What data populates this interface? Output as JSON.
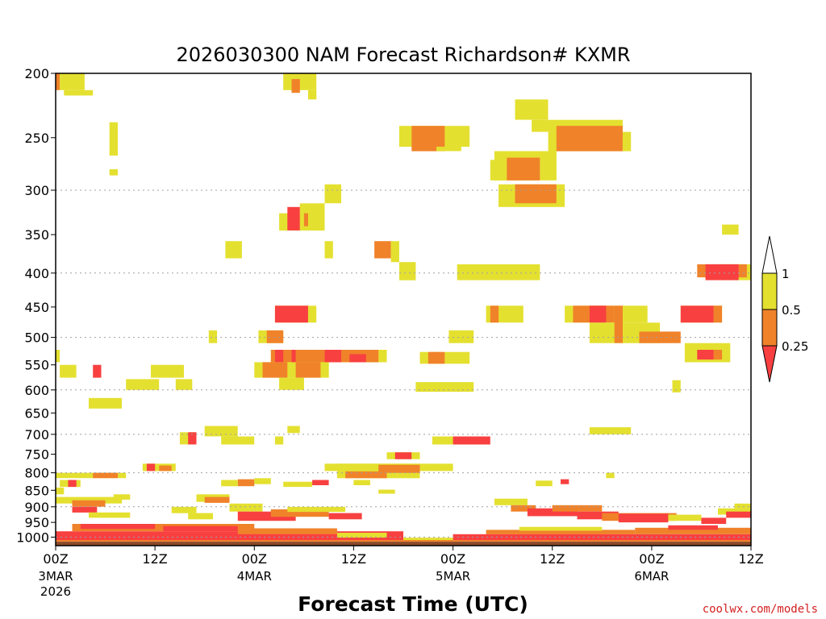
{
  "chart_data": {
    "type": "heatmap",
    "title": "2026030300 NAM Forecast Richardson# KXMR",
    "xlabel": "Forecast Time (UTC)",
    "ylabel": "",
    "credit": "coolwx.com/models",
    "y_scale": "log (pressure, hPa, inverted)",
    "ylim": [
      1030,
      200
    ],
    "xlim": [
      0,
      84
    ],
    "x_unit": "forecast hour",
    "y_ticks": [
      200,
      250,
      300,
      350,
      400,
      450,
      500,
      550,
      600,
      650,
      700,
      750,
      800,
      850,
      900,
      950,
      1000
    ],
    "y_gridlines": [
      300,
      400,
      500,
      600,
      700,
      800,
      900,
      1000
    ],
    "x_ticks": [
      {
        "hour": 0,
        "label": "00Z",
        "date": "3MAR",
        "year": "2026"
      },
      {
        "hour": 12,
        "label": "12Z",
        "date": "",
        "year": ""
      },
      {
        "hour": 24,
        "label": "00Z",
        "date": "4MAR",
        "year": ""
      },
      {
        "hour": 36,
        "label": "12Z",
        "date": "",
        "year": ""
      },
      {
        "hour": 48,
        "label": "00Z",
        "date": "5MAR",
        "year": ""
      },
      {
        "hour": 60,
        "label": "12Z",
        "date": "",
        "year": ""
      },
      {
        "hour": 72,
        "label": "00Z",
        "date": "6MAR",
        "year": ""
      },
      {
        "hour": 84,
        "label": "12Z",
        "date": "",
        "year": ""
      }
    ],
    "legend": {
      "placement": "right",
      "labels": [
        "1",
        "0.5",
        "0.25"
      ],
      "bins": [
        {
          "range": "0.5-1",
          "color": "#e4e030"
        },
        {
          "range": "0.25-0.5",
          "color": "#f0822a"
        },
        {
          "range": "<0.25",
          "color": "#f84040"
        }
      ]
    },
    "colors": {
      "yellow": "#e4e030",
      "orange": "#f0822a",
      "red": "#f84040",
      "ground": "#8b4a2b"
    },
    "cells": [
      {
        "t0": 0,
        "t1": 0.5,
        "p0": 200,
        "p1": 212,
        "c": "orange"
      },
      {
        "t0": 0.5,
        "t1": 3.5,
        "p0": 200,
        "p1": 212,
        "c": "yellow"
      },
      {
        "t0": 1,
        "t1": 4.5,
        "p0": 212,
        "p1": 216,
        "c": "yellow"
      },
      {
        "t0": 6.5,
        "t1": 7.5,
        "p0": 237,
        "p1": 266,
        "c": "yellow"
      },
      {
        "t0": 6.5,
        "t1": 7.5,
        "p0": 279,
        "p1": 285,
        "c": "yellow"
      },
      {
        "t0": 27.5,
        "t1": 31.5,
        "p0": 200,
        "p1": 212,
        "c": "yellow"
      },
      {
        "t0": 28.5,
        "t1": 29.5,
        "p0": 204,
        "p1": 214,
        "c": "orange"
      },
      {
        "t0": 30.5,
        "t1": 31.5,
        "p0": 212,
        "p1": 219,
        "c": "yellow"
      },
      {
        "t0": 41.5,
        "t1": 50,
        "p0": 240,
        "p1": 258,
        "c": "yellow"
      },
      {
        "t0": 43,
        "t1": 47,
        "p0": 240,
        "p1": 262,
        "c": "orange"
      },
      {
        "t0": 46,
        "t1": 49,
        "p0": 258,
        "p1": 262,
        "c": "yellow"
      },
      {
        "t0": 55.5,
        "t1": 59.5,
        "p0": 219,
        "p1": 235,
        "c": "yellow"
      },
      {
        "t0": 57.5,
        "t1": 68.5,
        "p0": 235,
        "p1": 245,
        "c": "yellow"
      },
      {
        "t0": 59.5,
        "t1": 69.5,
        "p0": 245,
        "p1": 262,
        "c": "yellow"
      },
      {
        "t0": 60.5,
        "t1": 68.5,
        "p0": 240,
        "p1": 262,
        "c": "orange"
      },
      {
        "t0": 53,
        "t1": 60.5,
        "p0": 262,
        "p1": 290,
        "c": "yellow"
      },
      {
        "t0": 52.5,
        "t1": 55,
        "p0": 270,
        "p1": 290,
        "c": "yellow"
      },
      {
        "t0": 54.5,
        "t1": 58.5,
        "p0": 268,
        "p1": 290,
        "c": "orange"
      },
      {
        "t0": 53.5,
        "t1": 61.5,
        "p0": 294,
        "p1": 318,
        "c": "yellow"
      },
      {
        "t0": 55.5,
        "t1": 60.5,
        "p0": 294,
        "p1": 314,
        "c": "orange"
      },
      {
        "t0": 32.5,
        "t1": 34.5,
        "p0": 294,
        "p1": 314,
        "c": "yellow"
      },
      {
        "t0": 29.5,
        "t1": 32.5,
        "p0": 314,
        "p1": 345,
        "c": "yellow"
      },
      {
        "t0": 27,
        "t1": 30.5,
        "p0": 325,
        "p1": 345,
        "c": "yellow"
      },
      {
        "t0": 28,
        "t1": 29.5,
        "p0": 318,
        "p1": 345,
        "c": "red"
      },
      {
        "t0": 30,
        "t1": 30.5,
        "p0": 325,
        "p1": 340,
        "c": "orange"
      },
      {
        "t0": 20.5,
        "t1": 22.5,
        "p0": 358,
        "p1": 380,
        "c": "yellow"
      },
      {
        "t0": 32.5,
        "t1": 33.5,
        "p0": 358,
        "p1": 380,
        "c": "yellow"
      },
      {
        "t0": 38.5,
        "t1": 40.5,
        "p0": 358,
        "p1": 380,
        "c": "orange"
      },
      {
        "t0": 40.5,
        "t1": 41.5,
        "p0": 358,
        "p1": 385,
        "c": "yellow"
      },
      {
        "t0": 41.5,
        "t1": 43.5,
        "p0": 385,
        "p1": 410,
        "c": "yellow"
      },
      {
        "t0": 48.5,
        "t1": 58.5,
        "p0": 388,
        "p1": 410,
        "c": "yellow"
      },
      {
        "t0": 80.5,
        "t1": 84,
        "p0": 388,
        "p1": 410,
        "c": "yellow"
      },
      {
        "t0": 77.5,
        "t1": 83.5,
        "p0": 388,
        "p1": 406,
        "c": "orange"
      },
      {
        "t0": 78.5,
        "t1": 82.5,
        "p0": 388,
        "p1": 410,
        "c": "red"
      },
      {
        "t0": 80.5,
        "t1": 82.5,
        "p0": 338,
        "p1": 350,
        "c": "yellow"
      },
      {
        "t0": 26.5,
        "t1": 31.5,
        "p0": 448,
        "p1": 475,
        "c": "yellow"
      },
      {
        "t0": 26.5,
        "t1": 30.5,
        "p0": 448,
        "p1": 475,
        "c": "red"
      },
      {
        "t0": 52,
        "t1": 56.5,
        "p0": 448,
        "p1": 475,
        "c": "yellow"
      },
      {
        "t0": 52.5,
        "t1": 53.5,
        "p0": 448,
        "p1": 475,
        "c": "orange"
      },
      {
        "t0": 61.5,
        "t1": 71.5,
        "p0": 448,
        "p1": 475,
        "c": "yellow"
      },
      {
        "t0": 62.5,
        "t1": 67.5,
        "p0": 448,
        "p1": 475,
        "c": "orange"
      },
      {
        "t0": 64.5,
        "t1": 66.5,
        "p0": 448,
        "p1": 475,
        "c": "red"
      },
      {
        "t0": 64.5,
        "t1": 73,
        "p0": 475,
        "p1": 510,
        "c": "yellow"
      },
      {
        "t0": 67.5,
        "t1": 68.5,
        "p0": 448,
        "p1": 510,
        "c": "orange"
      },
      {
        "t0": 70.5,
        "t1": 75.5,
        "p0": 490,
        "p1": 510,
        "c": "orange"
      },
      {
        "t0": 75.5,
        "t1": 80.5,
        "p0": 448,
        "p1": 475,
        "c": "yellow"
      },
      {
        "t0": 75.5,
        "t1": 79.5,
        "p0": 448,
        "p1": 475,
        "c": "red"
      },
      {
        "t0": 79.5,
        "t1": 80.5,
        "p0": 448,
        "p1": 475,
        "c": "orange"
      },
      {
        "t0": 18.5,
        "t1": 19.5,
        "p0": 488,
        "p1": 510,
        "c": "yellow"
      },
      {
        "t0": 24.5,
        "t1": 27.5,
        "p0": 488,
        "p1": 510,
        "c": "yellow"
      },
      {
        "t0": 25.5,
        "t1": 27.5,
        "p0": 488,
        "p1": 510,
        "c": "orange"
      },
      {
        "t0": 47.5,
        "t1": 50.5,
        "p0": 488,
        "p1": 510,
        "c": "yellow"
      },
      {
        "t0": 76,
        "t1": 81.5,
        "p0": 510,
        "p1": 545,
        "c": "yellow"
      },
      {
        "t0": 77.5,
        "t1": 79.5,
        "p0": 522,
        "p1": 540,
        "c": "red"
      },
      {
        "t0": 79.5,
        "t1": 80.5,
        "p0": 522,
        "p1": 540,
        "c": "orange"
      },
      {
        "t0": 26,
        "t1": 40,
        "p0": 522,
        "p1": 545,
        "c": "yellow"
      },
      {
        "t0": 26,
        "t1": 39,
        "p0": 522,
        "p1": 545,
        "c": "orange"
      },
      {
        "t0": 26.5,
        "t1": 27.5,
        "p0": 522,
        "p1": 545,
        "c": "red"
      },
      {
        "t0": 28.5,
        "t1": 29,
        "p0": 522,
        "p1": 545,
        "c": "red"
      },
      {
        "t0": 32.5,
        "t1": 34.5,
        "p0": 522,
        "p1": 545,
        "c": "red"
      },
      {
        "t0": 35.5,
        "t1": 37.5,
        "p0": 530,
        "p1": 545,
        "c": "red"
      },
      {
        "t0": 24,
        "t1": 33,
        "p0": 545,
        "p1": 575,
        "c": "yellow"
      },
      {
        "t0": 25,
        "t1": 28,
        "p0": 545,
        "p1": 575,
        "c": "orange"
      },
      {
        "t0": 29,
        "t1": 32,
        "p0": 545,
        "p1": 575,
        "c": "orange"
      },
      {
        "t0": 27,
        "t1": 30,
        "p0": 575,
        "p1": 600,
        "c": "yellow"
      },
      {
        "t0": 0,
        "t1": 0.5,
        "p0": 522,
        "p1": 545,
        "c": "yellow"
      },
      {
        "t0": 0.5,
        "t1": 2.5,
        "p0": 550,
        "p1": 575,
        "c": "yellow"
      },
      {
        "t0": 4.5,
        "t1": 5.5,
        "p0": 550,
        "p1": 575,
        "c": "red"
      },
      {
        "t0": 11.5,
        "t1": 15.5,
        "p0": 550,
        "p1": 575,
        "c": "yellow"
      },
      {
        "t0": 8.5,
        "t1": 12.5,
        "p0": 578,
        "p1": 600,
        "c": "yellow"
      },
      {
        "t0": 14.5,
        "t1": 16.5,
        "p0": 578,
        "p1": 600,
        "c": "yellow"
      },
      {
        "t0": 4,
        "t1": 8,
        "p0": 617,
        "p1": 640,
        "c": "yellow"
      },
      {
        "t0": 43.5,
        "t1": 50.5,
        "p0": 584,
        "p1": 604,
        "c": "yellow"
      },
      {
        "t0": 44,
        "t1": 50,
        "p0": 526,
        "p1": 548,
        "c": "yellow"
      },
      {
        "t0": 45,
        "t1": 47,
        "p0": 526,
        "p1": 548,
        "c": "orange"
      },
      {
        "t0": 74.5,
        "t1": 75.5,
        "p0": 580,
        "p1": 605,
        "c": "yellow"
      },
      {
        "t0": 15,
        "t1": 17,
        "p0": 695,
        "p1": 725,
        "c": "yellow"
      },
      {
        "t0": 16,
        "t1": 17,
        "p0": 695,
        "p1": 725,
        "c": "red"
      },
      {
        "t0": 18,
        "t1": 22,
        "p0": 680,
        "p1": 705,
        "c": "yellow"
      },
      {
        "t0": 20,
        "t1": 24,
        "p0": 705,
        "p1": 725,
        "c": "yellow"
      },
      {
        "t0": 26.5,
        "t1": 27.5,
        "p0": 705,
        "p1": 725,
        "c": "yellow"
      },
      {
        "t0": 28,
        "t1": 29.5,
        "p0": 680,
        "p1": 697,
        "c": "yellow"
      },
      {
        "t0": 45.5,
        "t1": 51.5,
        "p0": 705,
        "p1": 725,
        "c": "yellow"
      },
      {
        "t0": 48,
        "t1": 52.5,
        "p0": 705,
        "p1": 725,
        "c": "red"
      },
      {
        "t0": 64.5,
        "t1": 69.5,
        "p0": 683,
        "p1": 700,
        "c": "yellow"
      },
      {
        "t0": 40,
        "t1": 44,
        "p0": 745,
        "p1": 763,
        "c": "yellow"
      },
      {
        "t0": 41,
        "t1": 43,
        "p0": 745,
        "p1": 763,
        "c": "red"
      },
      {
        "t0": 32.5,
        "t1": 48,
        "p0": 775,
        "p1": 795,
        "c": "yellow"
      },
      {
        "t0": 34,
        "t1": 44,
        "p0": 775,
        "p1": 815,
        "c": "yellow"
      },
      {
        "t0": 39,
        "t1": 44,
        "p0": 778,
        "p1": 800,
        "c": "orange"
      },
      {
        "t0": 35,
        "t1": 40,
        "p0": 796,
        "p1": 815,
        "c": "orange"
      },
      {
        "t0": 10.5,
        "t1": 14.5,
        "p0": 775,
        "p1": 795,
        "c": "yellow"
      },
      {
        "t0": 11,
        "t1": 12,
        "p0": 775,
        "p1": 795,
        "c": "red"
      },
      {
        "t0": 12.5,
        "t1": 14,
        "p0": 780,
        "p1": 795,
        "c": "orange"
      },
      {
        "t0": 0,
        "t1": 8.5,
        "p0": 800,
        "p1": 815,
        "c": "yellow"
      },
      {
        "t0": 4.5,
        "t1": 7.5,
        "p0": 800,
        "p1": 815,
        "c": "orange"
      },
      {
        "t0": 0.5,
        "t1": 3,
        "p0": 820,
        "p1": 840,
        "c": "yellow"
      },
      {
        "t0": 1.5,
        "t1": 2.5,
        "p0": 820,
        "p1": 840,
        "c": "red"
      },
      {
        "t0": 0,
        "t1": 1,
        "p0": 842,
        "p1": 862,
        "c": "yellow"
      },
      {
        "t0": 20,
        "t1": 22,
        "p0": 820,
        "p1": 838,
        "c": "yellow"
      },
      {
        "t0": 22,
        "t1": 24,
        "p0": 818,
        "p1": 838,
        "c": "orange"
      },
      {
        "t0": 24,
        "t1": 26,
        "p0": 815,
        "p1": 832,
        "c": "yellow"
      },
      {
        "t0": 27.5,
        "t1": 31,
        "p0": 825,
        "p1": 840,
        "c": "yellow"
      },
      {
        "t0": 31,
        "t1": 33,
        "p0": 820,
        "p1": 835,
        "c": "red"
      },
      {
        "t0": 36,
        "t1": 38,
        "p0": 820,
        "p1": 835,
        "c": "yellow"
      },
      {
        "t0": 39,
        "t1": 41,
        "p0": 848,
        "p1": 860,
        "c": "yellow"
      },
      {
        "t0": 58,
        "t1": 60,
        "p0": 822,
        "p1": 838,
        "c": "yellow"
      },
      {
        "t0": 61,
        "t1": 62,
        "p0": 818,
        "p1": 832,
        "c": "red"
      },
      {
        "t0": 66.5,
        "t1": 67.5,
        "p0": 800,
        "p1": 815,
        "c": "yellow"
      },
      {
        "t0": 0,
        "t1": 8,
        "p0": 870,
        "p1": 890,
        "c": "yellow"
      },
      {
        "t0": 2,
        "t1": 6,
        "p0": 880,
        "p1": 900,
        "c": "orange"
      },
      {
        "t0": 2,
        "t1": 5,
        "p0": 900,
        "p1": 918,
        "c": "red"
      },
      {
        "t0": 4,
        "t1": 9,
        "p0": 918,
        "p1": 935,
        "c": "yellow"
      },
      {
        "t0": 7,
        "t1": 9,
        "p0": 862,
        "p1": 878,
        "c": "yellow"
      },
      {
        "t0": 17,
        "t1": 21,
        "p0": 862,
        "p1": 885,
        "c": "yellow"
      },
      {
        "t0": 18,
        "t1": 21,
        "p0": 870,
        "p1": 888,
        "c": "orange"
      },
      {
        "t0": 21,
        "t1": 25,
        "p0": 890,
        "p1": 915,
        "c": "yellow"
      },
      {
        "t0": 22,
        "t1": 29,
        "p0": 915,
        "p1": 945,
        "c": "red"
      },
      {
        "t0": 26,
        "t1": 33,
        "p0": 908,
        "p1": 932,
        "c": "orange"
      },
      {
        "t0": 33,
        "t1": 37,
        "p0": 920,
        "p1": 940,
        "c": "red"
      },
      {
        "t0": 28,
        "t1": 35,
        "p0": 900,
        "p1": 916,
        "c": "yellow"
      },
      {
        "t0": 14,
        "t1": 17,
        "p0": 900,
        "p1": 920,
        "c": "yellow"
      },
      {
        "t0": 16,
        "t1": 19,
        "p0": 920,
        "p1": 940,
        "c": "yellow"
      },
      {
        "t0": 53,
        "t1": 57,
        "p0": 875,
        "p1": 895,
        "c": "yellow"
      },
      {
        "t0": 55,
        "t1": 58,
        "p0": 895,
        "p1": 915,
        "c": "orange"
      },
      {
        "t0": 57,
        "t1": 63,
        "p0": 905,
        "p1": 930,
        "c": "red"
      },
      {
        "t0": 60,
        "t1": 66,
        "p0": 895,
        "p1": 915,
        "c": "orange"
      },
      {
        "t0": 63,
        "t1": 68,
        "p0": 915,
        "p1": 940,
        "c": "red"
      },
      {
        "t0": 66,
        "t1": 75,
        "p0": 920,
        "p1": 945,
        "c": "orange"
      },
      {
        "t0": 68,
        "t1": 74,
        "p0": 922,
        "p1": 950,
        "c": "red"
      },
      {
        "t0": 74,
        "t1": 78,
        "p0": 925,
        "p1": 945,
        "c": "yellow"
      },
      {
        "t0": 78,
        "t1": 81,
        "p0": 935,
        "p1": 955,
        "c": "red"
      },
      {
        "t0": 80,
        "t1": 84,
        "p0": 905,
        "p1": 925,
        "c": "yellow"
      },
      {
        "t0": 81,
        "t1": 84,
        "p0": 915,
        "p1": 935,
        "c": "red"
      },
      {
        "t0": 82,
        "t1": 84,
        "p0": 890,
        "p1": 905,
        "c": "yellow"
      },
      {
        "t0": 0,
        "t1": 42,
        "p0": 980,
        "p1": 1010,
        "c": "red"
      },
      {
        "t0": 2,
        "t1": 24,
        "p0": 955,
        "p1": 980,
        "c": "orange"
      },
      {
        "t0": 3,
        "t1": 12,
        "p0": 955,
        "p1": 972,
        "c": "red"
      },
      {
        "t0": 13,
        "t1": 22,
        "p0": 962,
        "p1": 980,
        "c": "red"
      },
      {
        "t0": 22,
        "t1": 34,
        "p0": 970,
        "p1": 990,
        "c": "orange"
      },
      {
        "t0": 34,
        "t1": 40,
        "p0": 985,
        "p1": 1002,
        "c": "yellow"
      },
      {
        "t0": 42,
        "t1": 48,
        "p0": 1002,
        "p1": 1012,
        "c": "yellow"
      },
      {
        "t0": 48,
        "t1": 84,
        "p0": 990,
        "p1": 1012,
        "c": "red"
      },
      {
        "t0": 52,
        "t1": 70,
        "p0": 975,
        "p1": 990,
        "c": "orange"
      },
      {
        "t0": 56,
        "t1": 66,
        "p0": 965,
        "p1": 978,
        "c": "yellow"
      },
      {
        "t0": 70,
        "t1": 84,
        "p0": 968,
        "p1": 990,
        "c": "orange"
      },
      {
        "t0": 74,
        "t1": 80,
        "p0": 960,
        "p1": 975,
        "c": "red"
      },
      {
        "t0": 0,
        "t1": 84,
        "p0": 1010,
        "p1": 1016,
        "c": "orange"
      }
    ]
  }
}
